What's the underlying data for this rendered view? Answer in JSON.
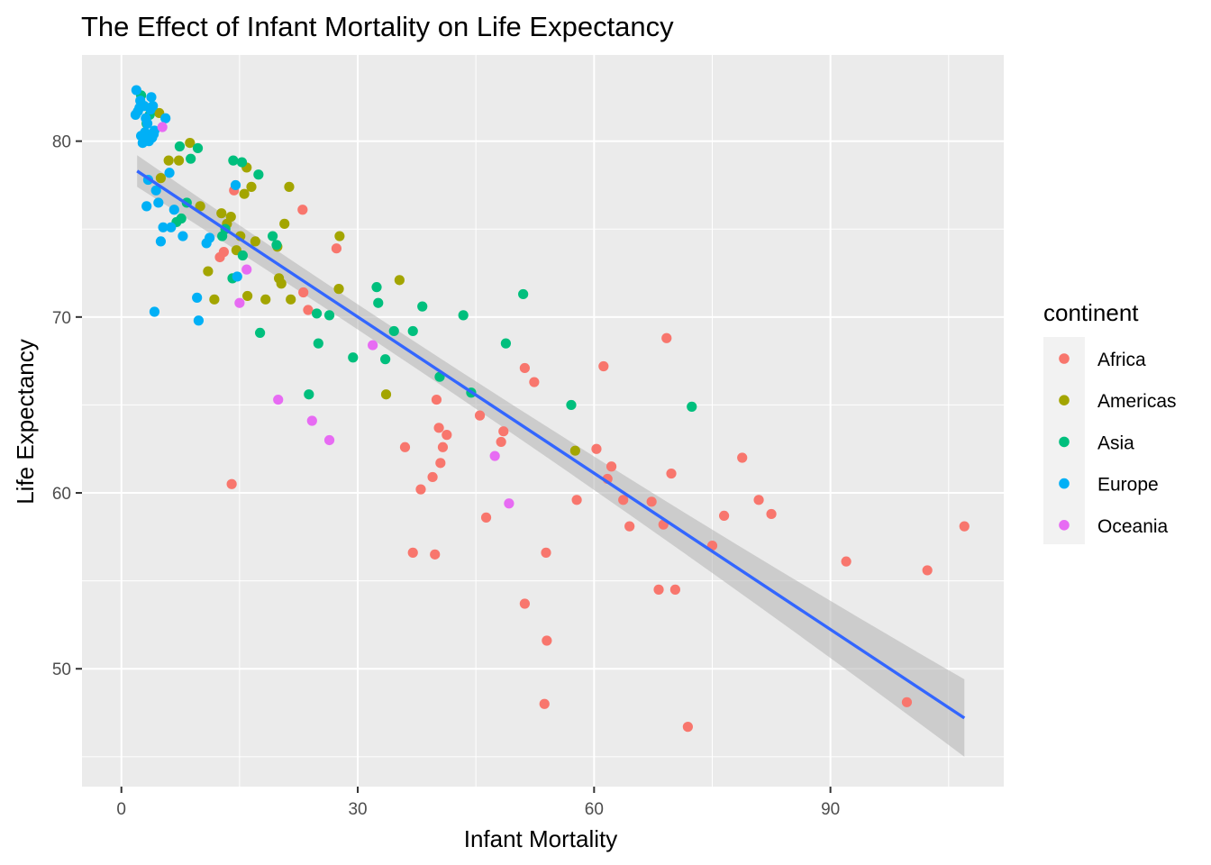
{
  "chart_data": {
    "type": "scatter",
    "title": "The Effect of Infant Mortality on Life Expectancy",
    "xlabel": "Infant Mortality",
    "ylabel": "Life Expectancy",
    "xlim": [
      -5,
      112
    ],
    "ylim": [
      43.3,
      84.9
    ],
    "x_ticks": [
      0,
      30,
      60,
      90
    ],
    "y_ticks": [
      50,
      60,
      70,
      80
    ],
    "grid": true,
    "legend": {
      "title": "continent",
      "placement": "right"
    },
    "colors": {
      "Africa": "#F8766D",
      "Americas": "#A3A500",
      "Asia": "#00BF7D",
      "Europe": "#00B0F6",
      "Oceania": "#E76BF3",
      "smooth_line": "#3366FF",
      "ribbon": "#b3b3b3",
      "panel": "#EBEBEB"
    },
    "smooth": {
      "method": "lm",
      "x": [
        2,
        107
      ],
      "y": [
        78.3,
        47.2
      ],
      "se_lower": [
        77.4,
        45.0
      ],
      "se_upper": [
        79.2,
        49.4
      ]
    },
    "series": [
      {
        "name": "Africa",
        "points": [
          [
            14,
            60.5
          ],
          [
            14.3,
            77.2
          ],
          [
            12.5,
            73.4
          ],
          [
            13,
            73.7
          ],
          [
            23,
            76.1
          ],
          [
            23.1,
            71.4
          ],
          [
            23.7,
            70.4
          ],
          [
            27.3,
            73.9
          ],
          [
            36,
            62.6
          ],
          [
            37,
            56.6
          ],
          [
            38,
            60.2
          ],
          [
            39.5,
            60.9
          ],
          [
            39.8,
            56.5
          ],
          [
            40,
            65.3
          ],
          [
            40.3,
            63.7
          ],
          [
            40.5,
            61.7
          ],
          [
            40.8,
            62.6
          ],
          [
            41.3,
            63.3
          ],
          [
            45.5,
            64.4
          ],
          [
            46.3,
            58.6
          ],
          [
            48.2,
            62.9
          ],
          [
            48.5,
            63.5
          ],
          [
            51.2,
            67.1
          ],
          [
            51.2,
            53.7
          ],
          [
            52.4,
            66.3
          ],
          [
            53.7,
            48.0
          ],
          [
            53.9,
            56.6
          ],
          [
            54,
            51.6
          ],
          [
            57.8,
            59.6
          ],
          [
            60.3,
            62.5
          ],
          [
            61.2,
            67.2
          ],
          [
            61.7,
            60.8
          ],
          [
            62.2,
            61.5
          ],
          [
            63.7,
            59.6
          ],
          [
            64.5,
            58.1
          ],
          [
            67.3,
            59.5
          ],
          [
            68.2,
            54.5
          ],
          [
            68.8,
            58.2
          ],
          [
            69.2,
            68.8
          ],
          [
            69.8,
            61.1
          ],
          [
            70.3,
            54.5
          ],
          [
            71.9,
            46.7
          ],
          [
            75,
            57.0
          ],
          [
            76.5,
            58.7
          ],
          [
            78.8,
            62.0
          ],
          [
            80.9,
            59.6
          ],
          [
            82.5,
            58.8
          ],
          [
            92,
            56.1
          ],
          [
            99.7,
            48.1
          ],
          [
            102.3,
            55.6
          ],
          [
            107,
            58.1
          ]
        ]
      },
      {
        "name": "Americas",
        "points": [
          [
            4.8,
            81.6
          ],
          [
            5,
            77.9
          ],
          [
            6,
            78.9
          ],
          [
            7.3,
            78.9
          ],
          [
            8.7,
            79.9
          ],
          [
            10,
            76.3
          ],
          [
            11,
            72.6
          ],
          [
            11.8,
            71.0
          ],
          [
            12.7,
            75.9
          ],
          [
            13.4,
            75.3
          ],
          [
            13.9,
            75.7
          ],
          [
            14.6,
            73.8
          ],
          [
            15.1,
            74.6
          ],
          [
            15.6,
            77.0
          ],
          [
            15.9,
            78.5
          ],
          [
            16,
            71.2
          ],
          [
            16.5,
            77.4
          ],
          [
            17,
            74.3
          ],
          [
            18.3,
            71.0
          ],
          [
            19.8,
            74.0
          ],
          [
            20,
            72.2
          ],
          [
            20.3,
            71.9
          ],
          [
            20.7,
            75.3
          ],
          [
            21.3,
            77.4
          ],
          [
            21.5,
            71.0
          ],
          [
            27.6,
            71.6
          ],
          [
            27.7,
            74.6
          ],
          [
            33.6,
            65.6
          ],
          [
            35.3,
            72.1
          ],
          [
            57.6,
            62.4
          ]
        ]
      },
      {
        "name": "Asia",
        "points": [
          [
            2.5,
            82.6
          ],
          [
            3.2,
            81.0
          ],
          [
            3.6,
            81.5
          ],
          [
            7,
            75.4
          ],
          [
            7.4,
            79.7
          ],
          [
            7.6,
            75.6
          ],
          [
            8.3,
            76.5
          ],
          [
            8.8,
            79.0
          ],
          [
            9.7,
            79.6
          ],
          [
            12.8,
            74.6
          ],
          [
            13.2,
            75.0
          ],
          [
            14.1,
            72.2
          ],
          [
            14.2,
            78.9
          ],
          [
            15.3,
            78.8
          ],
          [
            15.4,
            73.5
          ],
          [
            17.4,
            78.1
          ],
          [
            17.6,
            69.1
          ],
          [
            19.2,
            74.6
          ],
          [
            19.7,
            74.1
          ],
          [
            23.8,
            65.6
          ],
          [
            24.8,
            70.2
          ],
          [
            25,
            68.5
          ],
          [
            26.4,
            70.1
          ],
          [
            29.4,
            67.7
          ],
          [
            32.4,
            71.7
          ],
          [
            32.6,
            70.8
          ],
          [
            33.5,
            67.6
          ],
          [
            34.6,
            69.2
          ],
          [
            37,
            69.2
          ],
          [
            38.2,
            70.6
          ],
          [
            40.4,
            66.6
          ],
          [
            43.4,
            70.1
          ],
          [
            44.4,
            65.7
          ],
          [
            48.8,
            68.5
          ],
          [
            51,
            71.3
          ],
          [
            57.1,
            65.0
          ],
          [
            72.4,
            64.9
          ]
        ]
      },
      {
        "name": "Europe",
        "points": [
          [
            1.8,
            81.5
          ],
          [
            1.9,
            82.9
          ],
          [
            2.1,
            81.7
          ],
          [
            2.3,
            81.9
          ],
          [
            2.4,
            82.3
          ],
          [
            2.5,
            80.3
          ],
          [
            2.7,
            79.9
          ],
          [
            2.9,
            82.0
          ],
          [
            3,
            80.5
          ],
          [
            3.1,
            81.3
          ],
          [
            3.3,
            81.0
          ],
          [
            3.4,
            77.8
          ],
          [
            3.5,
            80.0
          ],
          [
            3.7,
            81.8
          ],
          [
            3.8,
            82.5
          ],
          [
            3.9,
            80.2
          ],
          [
            4,
            82.0
          ],
          [
            4.1,
            80.4
          ],
          [
            4.2,
            80.6
          ],
          [
            4.4,
            77.2
          ],
          [
            4.7,
            76.5
          ],
          [
            5,
            74.3
          ],
          [
            5.3,
            75.1
          ],
          [
            5.6,
            81.3
          ],
          [
            6.1,
            78.2
          ],
          [
            6.3,
            75.1
          ],
          [
            6.7,
            76.1
          ],
          [
            7.8,
            74.6
          ],
          [
            9.6,
            71.1
          ],
          [
            9.8,
            69.8
          ],
          [
            10.8,
            74.2
          ],
          [
            11.2,
            74.5
          ],
          [
            14.5,
            77.5
          ],
          [
            14.7,
            72.3
          ],
          [
            3.2,
            76.3
          ],
          [
            4.2,
            70.3
          ]
        ]
      },
      {
        "name": "Oceania",
        "points": [
          [
            5.2,
            80.8
          ],
          [
            15,
            70.8
          ],
          [
            15.9,
            72.7
          ],
          [
            19.9,
            65.3
          ],
          [
            24.2,
            64.1
          ],
          [
            26.4,
            63.0
          ],
          [
            31.9,
            68.4
          ],
          [
            47.4,
            62.1
          ],
          [
            49.2,
            59.4
          ]
        ]
      }
    ]
  }
}
